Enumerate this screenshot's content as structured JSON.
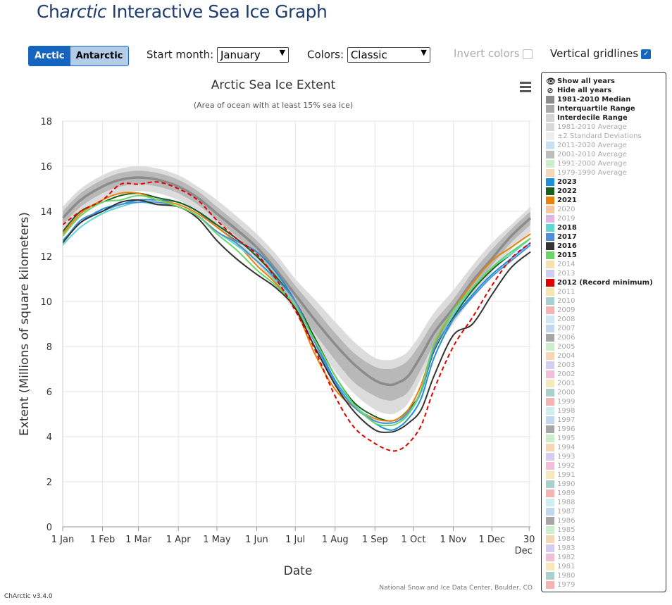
{
  "app": {
    "title_prefix": "Ch",
    "title_italic": "arctic",
    "title_suffix": " Interactive Sea Ice Graph",
    "version": "ChArctic v3.4.0"
  },
  "controls": {
    "hemisphere": [
      "Arctic",
      "Antarctic"
    ],
    "start_month_label": "Start month:",
    "start_month_value": "January",
    "colors_label": "Colors:",
    "colors_value": "Classic",
    "invert_colors_label": "Invert colors",
    "vertical_gridlines_label": "Vertical gridlines",
    "accent": "#1565c0"
  },
  "legend": {
    "show_all": "Show all years",
    "hide_all": "Hide all years",
    "items": [
      {
        "label": "1981-2010 Median",
        "color": "#8c8c8c",
        "active": true
      },
      {
        "label": "Interquartile Range",
        "color": "#a8a8a8",
        "active": true
      },
      {
        "label": "Interdecile Range",
        "color": "#d4d4d4",
        "active": true
      },
      {
        "label": "1981-2010 Average",
        "color": "#d9d9d9",
        "active": false
      },
      {
        "label": "±2 Standard Deviations",
        "color": "#eeeeee",
        "active": false
      },
      {
        "label": "2011-2020 Average",
        "color": "#c9dff2",
        "active": false
      },
      {
        "label": "2001-2010 Average",
        "color": "#bdbdbd",
        "active": false
      },
      {
        "label": "1991-2000 Average",
        "color": "#cdeecd",
        "active": false
      },
      {
        "label": "1979-1990 Average",
        "color": "#f6d8b8",
        "active": false
      },
      {
        "label": "2023",
        "color": "#1e90d6",
        "active": true
      },
      {
        "label": "2022",
        "color": "#1b5e20",
        "active": true
      },
      {
        "label": "2021",
        "color": "#e8820e",
        "active": true
      },
      {
        "label": "2020",
        "color": "#f3c9a3",
        "active": false
      },
      {
        "label": "2019",
        "color": "#e0b6e6",
        "active": false
      },
      {
        "label": "2018",
        "color": "#5fd6cf",
        "active": true
      },
      {
        "label": "2017",
        "color": "#4f8fd6",
        "active": true
      },
      {
        "label": "2016",
        "color": "#333333",
        "active": true
      },
      {
        "label": "2015",
        "color": "#6ad46a",
        "active": true
      },
      {
        "label": "2014",
        "color": "#f6e0b0",
        "active": false
      },
      {
        "label": "2013",
        "color": "#cfcdef",
        "active": false
      },
      {
        "label": "2012 (Record minimum)",
        "color": "#e00000",
        "active": true
      },
      {
        "label": "2011",
        "color": "#f5e6b4",
        "active": false
      },
      {
        "label": "2010",
        "color": "#a9d0d0",
        "active": false
      },
      {
        "label": "2009",
        "color": "#f4b4b4",
        "active": false
      },
      {
        "label": "2008",
        "color": "#cde7f4",
        "active": false
      },
      {
        "label": "2007",
        "color": "#c3d8ef",
        "active": false
      },
      {
        "label": "2006",
        "color": "#a6a6a6",
        "active": false
      },
      {
        "label": "2005",
        "color": "#cdeecd",
        "active": false
      },
      {
        "label": "2004",
        "color": "#f6d6b4",
        "active": false
      },
      {
        "label": "2003",
        "color": "#d4cdef",
        "active": false
      },
      {
        "label": "2002",
        "color": "#f2c0d6",
        "active": false
      },
      {
        "label": "2001",
        "color": "#f6e8b8",
        "active": false
      },
      {
        "label": "2000",
        "color": "#a9d0cc",
        "active": false
      },
      {
        "label": "1999",
        "color": "#f4b4b4",
        "active": false
      },
      {
        "label": "1998",
        "color": "#cdeff0",
        "active": false
      },
      {
        "label": "1997",
        "color": "#c3d8ef",
        "active": false
      },
      {
        "label": "1996",
        "color": "#a6a6a6",
        "active": false
      },
      {
        "label": "1995",
        "color": "#cdeecd",
        "active": false
      },
      {
        "label": "1994",
        "color": "#f6d6b4",
        "active": false
      },
      {
        "label": "1993",
        "color": "#d4cdef",
        "active": false
      },
      {
        "label": "1992",
        "color": "#f2c0d6",
        "active": false
      },
      {
        "label": "1991",
        "color": "#f6e8b8",
        "active": false
      },
      {
        "label": "1990",
        "color": "#a9d0cc",
        "active": false
      },
      {
        "label": "1989",
        "color": "#f4b4b4",
        "active": false
      },
      {
        "label": "1988",
        "color": "#cdeff0",
        "active": false
      },
      {
        "label": "1987",
        "color": "#c3d8ef",
        "active": false
      },
      {
        "label": "1986",
        "color": "#a6a6a6",
        "active": false
      },
      {
        "label": "1985",
        "color": "#cdeecd",
        "active": false
      },
      {
        "label": "1984",
        "color": "#f6d6b4",
        "active": false
      },
      {
        "label": "1983",
        "color": "#d4cdef",
        "active": false
      },
      {
        "label": "1982",
        "color": "#f2c0d6",
        "active": false
      },
      {
        "label": "1981",
        "color": "#f6e8b8",
        "active": false
      },
      {
        "label": "1980",
        "color": "#a9d0cc",
        "active": false
      },
      {
        "label": "1979",
        "color": "#f4b4b4",
        "active": false
      }
    ]
  },
  "chart_data": {
    "type": "line",
    "title": "Arctic Sea Ice Extent",
    "subtitle": "(Area of ocean with at least 15% sea ice)",
    "xlabel": "Date",
    "ylabel": "Extent (Millions of square kilometers)",
    "ylim": [
      0,
      18
    ],
    "yticks": [
      0,
      2,
      4,
      6,
      8,
      10,
      12,
      14,
      16,
      18
    ],
    "xlim": [
      1,
      365
    ],
    "xticks": [
      {
        "day": 1,
        "label": "1 Jan"
      },
      {
        "day": 32,
        "label": "1 Feb"
      },
      {
        "day": 60,
        "label": "1 Mar"
      },
      {
        "day": 91,
        "label": "1 Apr"
      },
      {
        "day": 121,
        "label": "1 May"
      },
      {
        "day": 152,
        "label": "1 Jun"
      },
      {
        "day": 182,
        "label": "1 Jul"
      },
      {
        "day": 213,
        "label": "1 Aug"
      },
      {
        "day": 244,
        "label": "1 Sep"
      },
      {
        "day": 274,
        "label": "1 Oct"
      },
      {
        "day": 305,
        "label": "1 Nov"
      },
      {
        "day": 335,
        "label": "1 Dec"
      },
      {
        "day": 364,
        "label": "30"
      }
    ],
    "xtick_extra": "Dec",
    "grid": "on",
    "credit": "National Snow and Ice Data Center, Boulder, CO",
    "menu_icon": "hamburger-menu-icon",
    "x": [
      1,
      15,
      32,
      46,
      60,
      75,
      91,
      106,
      121,
      136,
      152,
      167,
      182,
      197,
      213,
      228,
      244,
      255,
      262,
      270,
      280,
      290,
      305,
      320,
      335,
      350,
      365
    ],
    "median": [
      13.7,
      14.5,
      15.1,
      15.4,
      15.5,
      15.4,
      15.1,
      14.6,
      13.9,
      13.2,
      12.4,
      11.4,
      10.3,
      9.2,
      8.1,
      7.2,
      6.5,
      6.3,
      6.4,
      6.7,
      7.6,
      8.6,
      9.7,
      10.9,
      11.9,
      12.9,
      13.7
    ],
    "iqr_low": [
      13.4,
      14.2,
      14.8,
      15.1,
      15.2,
      15.1,
      14.8,
      14.3,
      13.6,
      12.9,
      12.0,
      11.0,
      9.8,
      8.6,
      7.4,
      6.4,
      5.8,
      5.6,
      5.7,
      6.0,
      7.0,
      8.1,
      9.3,
      10.5,
      11.6,
      12.6,
      13.4
    ],
    "iqr_high": [
      14.0,
      14.8,
      15.4,
      15.7,
      15.8,
      15.7,
      15.4,
      14.9,
      14.2,
      13.5,
      12.7,
      11.8,
      10.7,
      9.7,
      8.6,
      7.7,
      7.1,
      7.0,
      7.1,
      7.4,
      8.2,
      9.1,
      10.1,
      11.3,
      12.3,
      13.2,
      14.0
    ],
    "idr_low": [
      13.1,
      13.9,
      14.5,
      14.8,
      14.9,
      14.8,
      14.5,
      14.0,
      13.3,
      12.6,
      11.7,
      10.7,
      9.5,
      8.2,
      6.9,
      5.9,
      5.2,
      5.0,
      5.1,
      5.5,
      6.6,
      7.8,
      9.0,
      10.2,
      11.3,
      12.3,
      13.1
    ],
    "idr_high": [
      14.2,
      15.0,
      15.6,
      15.9,
      16.0,
      15.9,
      15.6,
      15.1,
      14.5,
      13.8,
      13.0,
      12.1,
      11.0,
      10.1,
      9.1,
      8.2,
      7.5,
      7.4,
      7.5,
      7.8,
      8.6,
      9.5,
      10.5,
      11.6,
      12.6,
      13.4,
      14.2
    ],
    "series": [
      {
        "name": "2023",
        "color": "#1e90d6",
        "values": [
          12.7,
          13.5,
          14.1,
          14.3,
          14.5,
          14.5,
          14.4,
          14.0,
          13.3,
          12.7,
          12.2,
          11.3,
          10.0,
          8.3,
          6.5,
          5.4,
          4.6,
          4.3,
          4.4,
          4.8,
          5.7,
          7.5,
          9.2,
          10.3,
          11.2,
          11.9,
          12.6
        ]
      },
      {
        "name": "2022",
        "color": "#1b5e20",
        "values": [
          13.1,
          14.0,
          14.4,
          14.7,
          14.8,
          14.6,
          14.4,
          14.0,
          13.4,
          12.8,
          12.0,
          11.1,
          10.0,
          8.4,
          6.7,
          5.5,
          4.9,
          4.7,
          4.8,
          5.2,
          6.0,
          7.8,
          9.3,
          10.5,
          11.4,
          12.1,
          12.8
        ]
      },
      {
        "name": "2021",
        "color": "#e8820e",
        "values": [
          13.0,
          13.9,
          14.5,
          14.8,
          14.8,
          14.5,
          14.3,
          13.9,
          13.3,
          12.6,
          11.6,
          10.8,
          9.7,
          7.7,
          6.1,
          5.3,
          4.8,
          4.7,
          4.8,
          5.2,
          6.3,
          8.0,
          9.6,
          10.8,
          11.8,
          12.4,
          13.0
        ]
      },
      {
        "name": "2018",
        "color": "#5fd6cf",
        "values": [
          12.5,
          13.3,
          13.9,
          14.2,
          14.4,
          14.3,
          14.2,
          13.8,
          13.1,
          12.5,
          11.8,
          10.9,
          9.8,
          8.0,
          6.4,
          5.4,
          4.7,
          4.6,
          4.7,
          5.0,
          6.0,
          7.9,
          9.4,
          10.6,
          11.5,
          12.1,
          12.8
        ]
      },
      {
        "name": "2017",
        "color": "#4f8fd6",
        "values": [
          12.6,
          13.6,
          14.0,
          14.3,
          14.4,
          14.4,
          14.2,
          13.8,
          13.1,
          12.6,
          11.8,
          11.0,
          10.0,
          8.2,
          6.4,
          5.3,
          4.7,
          4.6,
          4.7,
          5.1,
          6.0,
          7.9,
          9.2,
          10.2,
          11.1,
          11.8,
          12.5
        ]
      },
      {
        "name": "2016",
        "color": "#333333",
        "values": [
          12.6,
          13.5,
          14.0,
          14.4,
          14.5,
          14.3,
          14.2,
          13.7,
          12.7,
          11.9,
          11.2,
          10.6,
          9.7,
          8.0,
          6.3,
          5.1,
          4.3,
          4.2,
          4.3,
          4.6,
          5.2,
          6.7,
          8.5,
          9.0,
          10.3,
          11.5,
          12.2
        ]
      },
      {
        "name": "2015",
        "color": "#6ad46a",
        "values": [
          12.9,
          13.8,
          14.4,
          14.5,
          14.7,
          14.5,
          14.2,
          13.8,
          13.0,
          12.3,
          11.4,
          10.7,
          9.8,
          8.3,
          6.7,
          5.4,
          4.6,
          4.5,
          4.6,
          5.0,
          6.1,
          8.1,
          9.6,
          10.6,
          11.5,
          12.2,
          12.8
        ]
      },
      {
        "name": "2012",
        "color": "#e00000",
        "dashed": true,
        "values": [
          13.4,
          14.0,
          14.5,
          15.2,
          15.2,
          15.3,
          15.0,
          14.5,
          13.6,
          12.8,
          12.1,
          11.0,
          9.6,
          7.9,
          5.8,
          4.4,
          3.7,
          3.4,
          3.4,
          3.7,
          4.5,
          6.1,
          8.0,
          9.3,
          10.7,
          11.9,
          12.6
        ]
      }
    ]
  }
}
